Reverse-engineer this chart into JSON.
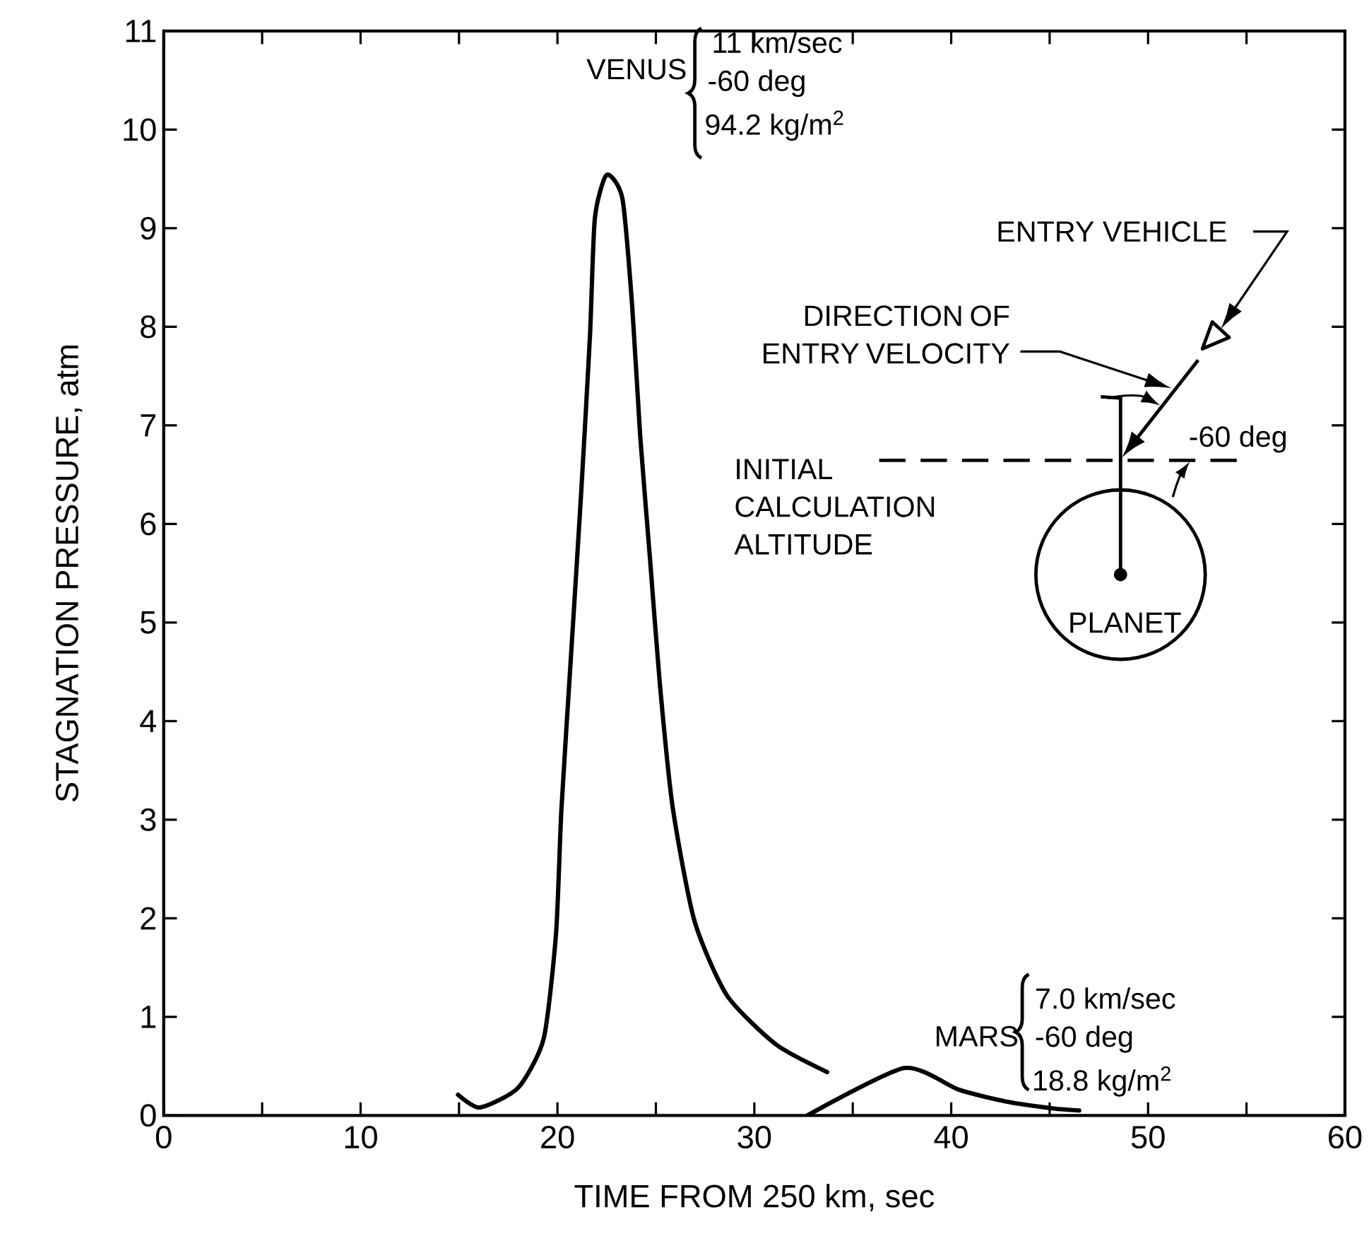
{
  "chart_data": {
    "type": "line",
    "xlabel": "TIME FROM 250 km, sec",
    "ylabel": "STAGNATION PRESSURE, atm",
    "xlim": [
      0,
      60
    ],
    "ylim": [
      0,
      11
    ],
    "xticks": [
      0,
      {
        "value": 5,
        "label": null
      },
      10,
      {
        "value": 15,
        "label": null
      },
      20,
      {
        "value": 25,
        "label": null
      },
      30,
      {
        "value": 35,
        "label": null
      },
      40,
      {
        "value": 45,
        "label": null
      },
      50,
      {
        "value": 55,
        "label": null
      },
      60
    ],
    "yticks": [
      0,
      1,
      2,
      3,
      4,
      5,
      6,
      7,
      8,
      9,
      10,
      11
    ],
    "series": [
      {
        "name": "VENUS",
        "color": "#000000",
        "x": [
          14.95,
          16.06,
          18.0,
          19.3,
          19.93,
          20.2,
          20.7,
          21.2,
          21.65,
          21.9,
          22.5,
          23.3,
          23.8,
          24.2,
          24.7,
          25.2,
          25.85,
          26.95,
          28.6,
          31.1,
          33.7
        ],
        "values": [
          0.21,
          0.08,
          0.28,
          0.78,
          1.85,
          3.1,
          4.7,
          6.3,
          7.9,
          9.1,
          9.54,
          9.3,
          8.2,
          6.9,
          5.65,
          4.38,
          3.13,
          1.98,
          1.22,
          0.72,
          0.44
        ]
      },
      {
        "name": "MARS",
        "color": "#000000",
        "x": [
          32.7,
          37.6,
          40.4,
          42.8,
          45.2,
          46.5
        ],
        "values": [
          0,
          0.48,
          0.26,
          0.14,
          0.07,
          0.05
        ]
      }
    ],
    "annotations": [
      "11 km/sec",
      "-60 deg",
      "94.2 kg/m$^{2}$",
      "7.0 km/sec",
      "-60 deg",
      "18.8 kg/m$^{2}$",
      "ENTRY VEHICLE",
      "DIRECTION OF ENTRY VELOCITY",
      "INITIAL CALCULATION ALTITUDE",
      "-60 deg",
      "PLANET"
    ]
  }
}
